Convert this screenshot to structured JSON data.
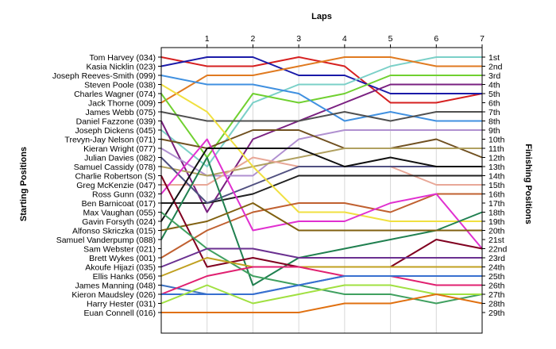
{
  "chart_data": {
    "type": "line",
    "title": "Laps",
    "ylabel_left": "Starting Positions",
    "ylabel_right": "Finishing Positions",
    "laps": [
      1,
      2,
      3,
      4,
      5,
      6,
      7
    ],
    "drivers": [
      "Tom Harvey (034)",
      "Kasia Nicklin (023)",
      "Joseph Reeves-Smith (099)",
      "Steven Poole (038)",
      "Charles Wagner (074)",
      "Jack Thorne (009)",
      "James Webb (075)",
      "Daniel Fazzone (039)",
      "Joseph Dickens (045)",
      "Trevyn-Jay Nelson (071)",
      "Kieran Wright (077)",
      "Julian Davies (082)",
      "Samuel Cassidy (078)",
      "Charlie Robertson (S)",
      "Greg McKenzie (047)",
      "Ross Gunn (032)",
      "Ben Barnicoat (017)",
      "Max Vaughan (055)",
      "Gavin Forsyth (024)",
      "Alfonso Skriczka (015)",
      "Samuel Vanderpump (088)",
      "Sam Webster (021)",
      "Brett Wykes (001)",
      "Akoufe Hijazi (035)",
      "Ellis Hanks (056)",
      "James Manning (048)",
      "Kieron Maudsley (026)",
      "Harry Hester (031)",
      "Euan Connell (016)"
    ],
    "positions": [
      "1st",
      "2nd",
      "3rd",
      "4th",
      "5th",
      "6th",
      "7th",
      "8th",
      "9th",
      "10th",
      "11th",
      "12th",
      "13th",
      "14th",
      "15th",
      "16th",
      "17th",
      "18th",
      "19th",
      "20th",
      "21st",
      "22nd",
      "23rd",
      "24th",
      "25th",
      "26th",
      "27th",
      "28th",
      "29th"
    ],
    "series": [
      {
        "color": "#d62020",
        "values": [
          1,
          2,
          2,
          1,
          2,
          6,
          6,
          5
        ]
      },
      {
        "color": "#1a1aa8",
        "values": [
          2,
          1,
          1,
          3,
          3,
          5,
          5,
          5
        ]
      },
      {
        "color": "#7bd0c8",
        "values": [
          9,
          13,
          6,
          4,
          4,
          2,
          1,
          1
        ]
      },
      {
        "color": "#e07a20",
        "values": [
          6,
          3,
          3,
          2,
          1,
          1,
          2,
          2
        ]
      },
      {
        "color": "#70d030",
        "values": [
          5,
          12,
          5,
          6,
          5,
          3,
          3,
          3
        ]
      },
      {
        "color": "#7a2080",
        "values": [
          8,
          18,
          10,
          8,
          6,
          4,
          4,
          4
        ]
      },
      {
        "color": "#4090e0",
        "values": [
          3,
          4,
          4,
          5,
          8,
          7,
          8,
          8
        ]
      },
      {
        "color": "#505050",
        "values": [
          7,
          8,
          8,
          8,
          7,
          8,
          7,
          7
        ]
      },
      {
        "color": "#b090d0",
        "values": [
          11,
          14,
          14,
          10,
          9,
          9,
          9,
          9
        ]
      },
      {
        "color": "#705020",
        "values": [
          10,
          11,
          9,
          9,
          11,
          11,
          10,
          12
        ]
      },
      {
        "color": "#b0a060",
        "values": [
          13,
          14,
          13,
          12,
          11,
          11,
          11,
          11
        ]
      },
      {
        "color": "#e8a898",
        "values": [
          15,
          15,
          12,
          13,
          13,
          13,
          15,
          15
        ]
      },
      {
        "color": "#202020",
        "values": [
          17,
          17,
          16,
          14,
          14,
          14,
          14,
          14
        ]
      },
      {
        "color": "#505080",
        "values": [
          12,
          17,
          15,
          13,
          13,
          13,
          13,
          13
        ]
      },
      {
        "color": "#f0e040",
        "values": [
          4,
          7,
          13,
          18,
          18,
          19,
          19,
          19
        ]
      },
      {
        "color": "#c06030",
        "values": [
          23,
          20,
          18,
          17,
          17,
          18,
          16,
          16
        ]
      },
      {
        "color": "#e030d0",
        "values": [
          16,
          10,
          20,
          19,
          19,
          17,
          16,
          22
        ]
      },
      {
        "color": "#208050",
        "values": [
          21,
          12,
          26,
          23,
          22,
          21,
          20,
          18
        ]
      },
      {
        "color": "#806010",
        "values": [
          20,
          19,
          17,
          20,
          20,
          20,
          20,
          20
        ]
      },
      {
        "color": "#800020",
        "values": [
          14,
          24,
          23,
          24,
          24,
          24,
          21,
          22
        ]
      },
      {
        "color": "#101010",
        "values": [
          19,
          11,
          11,
          11,
          13,
          12,
          13,
          13
        ]
      },
      {
        "color": "#40a060",
        "values": [
          18,
          22,
          25,
          26,
          27,
          27,
          28,
          27
        ]
      },
      {
        "color": "#6a3090",
        "values": [
          24,
          22,
          22,
          23,
          23,
          23,
          23,
          23
        ]
      },
      {
        "color": "#c0a020",
        "values": [
          25,
          23,
          24,
          24,
          24,
          24,
          24,
          24
        ]
      },
      {
        "color": "#3a70c0",
        "values": [
          26,
          27,
          27,
          26,
          25,
          25,
          25,
          25
        ]
      },
      {
        "color": "#e02070",
        "values": [
          27,
          25,
          24,
          24,
          25,
          25,
          26,
          26
        ]
      },
      {
        "color": "#3870d0",
        "values": [
          27,
          27,
          27,
          26,
          25,
          25,
          25,
          25
        ]
      },
      {
        "color": "#a0e040",
        "values": [
          28,
          26,
          28,
          27,
          26,
          26,
          27,
          27
        ]
      },
      {
        "color": "#e07010",
        "values": [
          29,
          29,
          29,
          29,
          28,
          28,
          27,
          28
        ]
      }
    ]
  }
}
